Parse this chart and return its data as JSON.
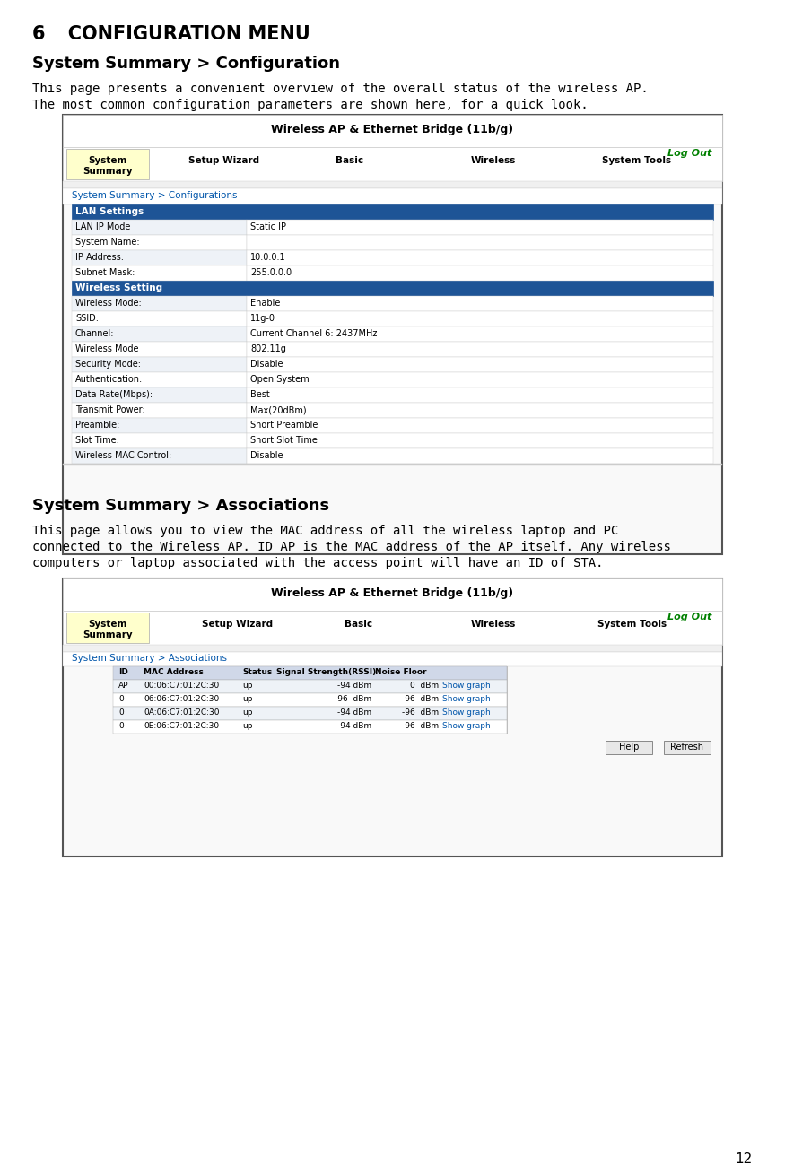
{
  "chapter_title_num": "6",
  "chapter_title_text": "   CONFIGURATION MENU",
  "section1_title": "System Summary > Configuration",
  "section1_body_line1": "This page presents a convenient overview of the overall status of the wireless AP.",
  "section1_body_line2": "The most common configuration parameters are shown here, for a quick look.",
  "section2_title": "System Summary > Associations",
  "section2_body_line1": "This page allows you to view the MAC address of all the wireless laptop and PC",
  "section2_body_line2": "connected to the Wireless AP. ID AP is the MAC address of the AP itself. Any wireless",
  "section2_body_line3": "computers or laptop associated with the access point will have an ID of STA.",
  "page_number": "12",
  "bg_color": "#ffffff",
  "blue_header": "#1e5496",
  "nav_yellow_bg": "#ffffcc",
  "row_light": "#eef2f7",
  "row_white": "#ffffff",
  "text_dark": "#000000",
  "green_link": "#008000",
  "blue_link": "#0055aa",
  "border_dark": "#555555",
  "border_light": "#aaaaaa",
  "img1_title": "Wireless AP & Ethernet Bridge (11b/g)",
  "img1_nav": [
    "System\nSummary",
    "Setup Wizard",
    "Basic",
    "Wireless",
    "System Tools"
  ],
  "img1_breadcrumb": "System Summary > Configurations",
  "img1_section1_header": "LAN Settings",
  "img1_section1_rows": [
    [
      "LAN IP Mode",
      "Static IP"
    ],
    [
      "System Name:",
      ""
    ],
    [
      "IP Address:",
      "10.0.0.1"
    ],
    [
      "Subnet Mask:",
      "255.0.0.0"
    ]
  ],
  "img1_section2_header": "Wireless Setting",
  "img1_section2_rows": [
    [
      "Wireless Mode:",
      "Enable"
    ],
    [
      "SSID:",
      "11g-0"
    ],
    [
      "Channel:",
      "Current Channel 6: 2437MHz"
    ],
    [
      "Wireless Mode",
      "802.11g"
    ],
    [
      "Security Mode:",
      "Disable"
    ],
    [
      "Authentication:",
      "Open System"
    ],
    [
      "Data Rate(Mbps):",
      "Best"
    ],
    [
      "Transmit Power:",
      "Max(20dBm)"
    ],
    [
      "Preamble:",
      "Short Preamble"
    ],
    [
      "Slot Time:",
      "Short Slot Time"
    ],
    [
      "Wireless MAC Control:",
      "Disable"
    ]
  ],
  "img2_title": "Wireless AP & Ethernet Bridge (11b/g)",
  "img2_nav": [
    "System\nSummary",
    "Setup Wizard",
    "Basic",
    "Wireless",
    "System Tools"
  ],
  "img2_breadcrumb": "System Summary > Associations",
  "img2_table_headers": [
    "ID",
    "MAC Address",
    "Status",
    "Signal Strength(RSSI)",
    "Noise Floor"
  ],
  "img2_table_col_widths": [
    28,
    110,
    38,
    110,
    75,
    70
  ],
  "img2_table_rows": [
    [
      "AP",
      "00:06:C7:01:2C:30",
      "up",
      "-94 dBm",
      "0  dBm",
      "Show graph"
    ],
    [
      "0",
      "06:06:C7:01:2C:30",
      "up",
      "-96  dBm",
      "-96  dBm",
      "Show graph"
    ],
    [
      "0",
      "0A:06:C7:01:2C:30",
      "up",
      "-94 dBm",
      "-96  dBm",
      "Show graph"
    ],
    [
      "0",
      "0E:06:C7:01:2C:30",
      "up",
      "-94 dBm",
      "-96  dBm",
      "Show graph"
    ]
  ],
  "img2_buttons": [
    "Help",
    "Refresh"
  ]
}
